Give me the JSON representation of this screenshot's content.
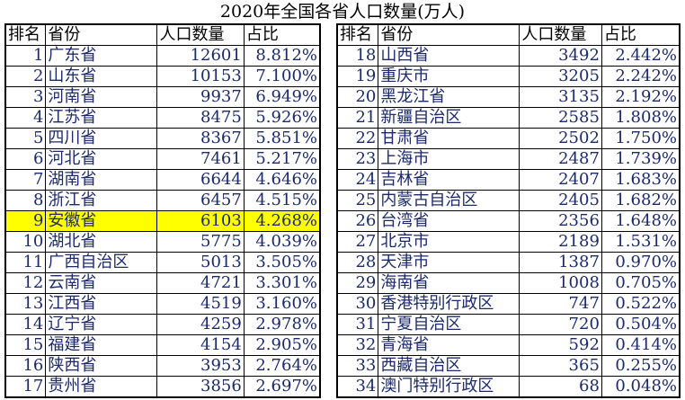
{
  "title": "2020年全国各省人口数量(万人)",
  "headers": [
    "排名",
    "省份",
    "人口数量",
    "占比"
  ],
  "highlight_color": "#ffff00",
  "text_color": "#1c2a6b",
  "highlighted_rank": 9,
  "left_rows": [
    [
      "1",
      "广东省",
      "12601",
      "8.812%"
    ],
    [
      "2",
      "山东省",
      "10153",
      "7.100%"
    ],
    [
      "3",
      "河南省",
      "9937",
      "6.949%"
    ],
    [
      "4",
      "江苏省",
      "8475",
      "5.926%"
    ],
    [
      "5",
      "四川省",
      "8367",
      "5.851%"
    ],
    [
      "6",
      "河北省",
      "7461",
      "5.217%"
    ],
    [
      "7",
      "湖南省",
      "6644",
      "4.646%"
    ],
    [
      "8",
      "浙江省",
      "6457",
      "4.515%"
    ],
    [
      "9",
      "安徽省",
      "6103",
      "4.268%"
    ],
    [
      "10",
      "湖北省",
      "5775",
      "4.039%"
    ],
    [
      "11",
      "广西自治区",
      "5013",
      "3.505%"
    ],
    [
      "12",
      "云南省",
      "4721",
      "3.301%"
    ],
    [
      "13",
      "江西省",
      "4519",
      "3.160%"
    ],
    [
      "14",
      "辽宁省",
      "4259",
      "2.978%"
    ],
    [
      "15",
      "福建省",
      "4154",
      "2.905%"
    ],
    [
      "16",
      "陕西省",
      "3953",
      "2.764%"
    ],
    [
      "17",
      "贵州省",
      "3856",
      "2.697%"
    ]
  ],
  "right_rows": [
    [
      "18",
      "山西省",
      "3492",
      "2.442%"
    ],
    [
      "19",
      "重庆市",
      "3205",
      "2.242%"
    ],
    [
      "20",
      "黑龙江省",
      "3135",
      "2.192%"
    ],
    [
      "21",
      "新疆自治区",
      "2585",
      "1.808%"
    ],
    [
      "22",
      "甘肃省",
      "2502",
      "1.750%"
    ],
    [
      "23",
      "上海市",
      "2487",
      "1.739%"
    ],
    [
      "24",
      "吉林省",
      "2407",
      "1.683%"
    ],
    [
      "25",
      "内蒙古自治区",
      "2405",
      "1.682%"
    ],
    [
      "26",
      "台湾省",
      "2356",
      "1.648%"
    ],
    [
      "27",
      "北京市",
      "2189",
      "1.531%"
    ],
    [
      "28",
      "天津市",
      "1387",
      "0.970%"
    ],
    [
      "29",
      "海南省",
      "1008",
      "0.705%"
    ],
    [
      "30",
      "香港特别行政区",
      "747",
      "0.522%"
    ],
    [
      "31",
      "宁夏自治区",
      "720",
      "0.504%"
    ],
    [
      "32",
      "青海省",
      "592",
      "0.414%"
    ],
    [
      "33",
      "西藏自治区",
      "365",
      "0.255%"
    ],
    [
      "34",
      "澳门特别行政区",
      "68",
      "0.048%"
    ]
  ]
}
